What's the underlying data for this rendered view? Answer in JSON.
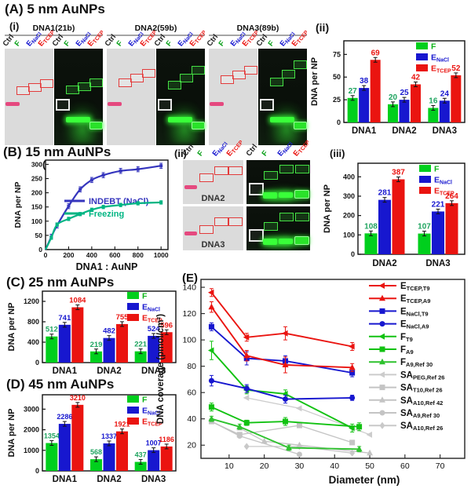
{
  "colors": {
    "green": "#00cf1d",
    "blue": "#1717cf",
    "red": "#ea1410",
    "green_label": "#1ea45f",
    "indebt": "#3535bd",
    "freezing": "#00b583",
    "gray": "#c7c7c7"
  },
  "treatments": [
    {
      "main": "Ctrl",
      "sub": "",
      "color": "#1a1a1a"
    },
    {
      "main": "F",
      "sub": "",
      "color": "#0aa019"
    },
    {
      "main": "E",
      "sub": "NaCl",
      "color": "#1717cf"
    },
    {
      "main": "E",
      "sub": "TCEP",
      "color": "#ea1410"
    }
  ],
  "bar_legend": [
    {
      "main": "F",
      "sub": "",
      "color": "#00cf1d",
      "text_color": "#0bb415"
    },
    {
      "main": "E",
      "sub": "NaCl",
      "color": "#1717cf",
      "text_color": "#1717cf"
    },
    {
      "main": "E",
      "sub": "TCEP",
      "color": "#ea1410",
      "text_color": "#ea1410"
    }
  ],
  "panelA": {
    "title": "(A) 5 nm AuNPs",
    "label_i": "(i)",
    "label_ii": "(ii)",
    "groups": [
      "DNA1(21b)",
      "DNA2(59b)",
      "DNA3(89b)"
    ],
    "gel_groups": [
      {
        "label": "DNA1(21b)",
        "light_y": [
          39,
          36,
          32
        ],
        "dark_y": [
          38,
          35,
          31
        ]
      },
      {
        "label": "DNA2(59b)",
        "light_y": [
          31,
          26,
          21
        ],
        "dark_y": [
          33,
          26,
          18
        ]
      },
      {
        "label": "DNA3(89b)",
        "light_y": [
          28,
          23,
          18
        ],
        "dark_y": [
          30,
          22,
          12
        ]
      }
    ],
    "chart_data": {
      "type": "bar",
      "categories": [
        "DNA1",
        "DNA2",
        "DNA3"
      ],
      "series": [
        {
          "name": "F",
          "values": [
            27,
            20,
            16
          ]
        },
        {
          "name": "ENaCl",
          "values": [
            38,
            25,
            24
          ]
        },
        {
          "name": "ETCEP",
          "values": [
            69,
            42,
            52
          ]
        }
      ],
      "ylabel": "DNA per NP",
      "yticks": [
        0,
        25,
        50,
        75
      ],
      "ylim": [
        0,
        90
      ]
    }
  },
  "panelB": {
    "title": "(B) 15 nm AuNPs",
    "label_i": "(i)",
    "label_ii": "(ii)",
    "label_iii": "(iii)",
    "line_chart": {
      "type": "line",
      "xlabel": "DNA1 : AuNP",
      "ylabel": "DNA per NP",
      "xticks": [
        0,
        200,
        400,
        600,
        800,
        1000
      ],
      "yticks": [
        0,
        50,
        100,
        150,
        200,
        250,
        300
      ],
      "xlim": [
        0,
        1060
      ],
      "ylim": [
        0,
        315
      ],
      "series": [
        {
          "name": "INDEBT (NaCl)",
          "color": "#3535bd",
          "err": 9,
          "x": [
            50,
            100,
            200,
            300,
            400,
            500,
            650,
            800,
            1000
          ],
          "y": [
            45,
            85,
            153,
            212,
            245,
            262,
            277,
            283,
            295
          ]
        },
        {
          "name": "Freezing",
          "color": "#00b583",
          "err": 6,
          "x": [
            50,
            100,
            200,
            300,
            400,
            500,
            650,
            800,
            1000
          ],
          "y": [
            42,
            88,
            108,
            125,
            140,
            150,
            157,
            163,
            166
          ]
        }
      ]
    },
    "gel_rows": [
      {
        "label": "DNA2",
        "light_y": [
          30,
          15,
          15
        ],
        "dark_y": [
          25,
          10,
          10
        ]
      },
      {
        "label": "DNA3",
        "light_y": [
          42,
          25,
          25
        ],
        "dark_y": [
          35,
          15,
          15
        ]
      }
    ],
    "chart_data": {
      "type": "bar",
      "categories": [
        "DNA2",
        "DNA3"
      ],
      "series": [
        {
          "name": "F",
          "values": [
            108,
            107
          ]
        },
        {
          "name": "ENaCl",
          "values": [
            281,
            221
          ]
        },
        {
          "name": "ETCEP",
          "values": [
            387,
            264
          ]
        }
      ],
      "ylabel": "DNA per NP",
      "yticks": [
        0,
        100,
        200,
        300,
        400
      ],
      "ylim": [
        0,
        470
      ]
    }
  },
  "panelC": {
    "title": "(C) 25 nm AuNPs",
    "chart_data": {
      "type": "bar",
      "categories": [
        "DNA1",
        "DNA2",
        "DNA3"
      ],
      "series": [
        {
          "name": "F",
          "values": [
            512,
            219,
            221
          ]
        },
        {
          "name": "ENaCl",
          "values": [
            741,
            482,
            524
          ]
        },
        {
          "name": "ETCEP",
          "values": [
            1084,
            755,
            596
          ]
        }
      ],
      "ylabel": "DNA per NP",
      "yticks": [
        0,
        400,
        800,
        1200
      ],
      "ylim": [
        0,
        1400
      ]
    }
  },
  "panelD": {
    "title": "(D) 45 nm AuNPs",
    "chart_data": {
      "type": "bar",
      "categories": [
        "DNA1",
        "DNA2",
        "DNA3"
      ],
      "series": [
        {
          "name": "F",
          "values": [
            1354,
            568,
            437
          ]
        },
        {
          "name": "ENaCl",
          "values": [
            2286,
            1337,
            1007
          ]
        },
        {
          "name": "ETCEP",
          "values": [
            3210,
            1921,
            1186
          ]
        }
      ],
      "ylabel": "DNA per NP",
      "yticks": [
        0,
        1000,
        2000,
        3000
      ],
      "ylim": [
        0,
        3700
      ]
    }
  },
  "panelE": {
    "label": "(E)",
    "chart_data": {
      "type": "scatter",
      "xlabel": "Diameter (nm)",
      "ylabel": "DNA coverage (pmol/cm²)",
      "xticks": [
        10,
        20,
        30,
        40,
        50,
        60,
        70
      ],
      "yticks": [
        20,
        40,
        60,
        80,
        100,
        120,
        140
      ],
      "xlim": [
        2,
        77
      ],
      "ylim": [
        10,
        146
      ],
      "legend_position": "right-inside",
      "series": [
        {
          "id": "ETCEP-T9",
          "main": "E",
          "sub": "TCEP,T9",
          "color": "#ea1410",
          "marker": "tl",
          "x": [
            5,
            15,
            26,
            45
          ],
          "y": [
            136,
            102,
            105,
            95
          ],
          "err": [
            3,
            3,
            5,
            3
          ]
        },
        {
          "id": "ETCEP-A9",
          "main": "E",
          "sub": "TCEP,A9",
          "color": "#ea1410",
          "marker": "tu",
          "x": [
            5,
            15,
            26,
            45
          ],
          "y": [
            125,
            88,
            81,
            79
          ],
          "err": [
            4,
            4,
            6,
            3
          ]
        },
        {
          "id": "ENaCl-T9",
          "main": "E",
          "sub": "NaCl,T9",
          "color": "#1717cf",
          "marker": "sq",
          "x": [
            5,
            15,
            26,
            45
          ],
          "y": [
            110,
            86,
            84,
            75
          ],
          "err": [
            3,
            5,
            4,
            3
          ]
        },
        {
          "id": "ENaCl-A9",
          "main": "E",
          "sub": "NaCl,A9",
          "color": "#1717cf",
          "marker": "ci",
          "x": [
            5,
            15,
            26,
            45
          ],
          "y": [
            69,
            63,
            55,
            56
          ],
          "err": [
            4,
            3,
            3,
            2
          ]
        },
        {
          "id": "F-T9",
          "main": "F",
          "sub": "T9",
          "color": "#12c212",
          "marker": "tl",
          "x": [
            5,
            15,
            26,
            45
          ],
          "y": [
            92,
            62,
            59,
            33
          ],
          "err": [
            7,
            3,
            3,
            3
          ]
        },
        {
          "id": "F-A9",
          "main": "F",
          "sub": "A9",
          "color": "#12c212",
          "marker": "sq",
          "x": [
            5,
            15,
            26,
            47
          ],
          "y": [
            49,
            37,
            38,
            34
          ],
          "err": [
            3,
            2,
            3,
            3
          ]
        },
        {
          "id": "F-A9-Ref30",
          "main": "F",
          "sub": "A9,Ref 30",
          "color": "#2ec22e",
          "marker": "tu",
          "x": [
            5,
            13,
            27,
            47
          ],
          "y": [
            40,
            34,
            18,
            17
          ],
          "err": [
            2,
            2,
            2,
            2
          ]
        },
        {
          "id": "SA-PEG-Ref26",
          "main": "SA",
          "sub": "PEG,Ref 26",
          "color": "#cccccc",
          "marker": "tl",
          "x": [
            15,
            30,
            50
          ],
          "y": [
            56,
            48,
            28
          ],
          "err": [
            0,
            0,
            0
          ]
        },
        {
          "id": "SA-T10-Ref26",
          "main": "SA",
          "sub": "T10,Ref 26",
          "color": "#c4c4c4",
          "marker": "sq",
          "x": [
            5,
            13,
            30,
            45
          ],
          "y": [
            38,
            28,
            35,
            22
          ],
          "err": [
            0,
            0,
            0,
            0
          ]
        },
        {
          "id": "SA-A10-Ref42",
          "main": "SA",
          "sub": "A10,Ref 42",
          "color": "#c4c4c4",
          "marker": "tu",
          "x": [
            13,
            20,
            30,
            50
          ],
          "y": [
            33,
            23,
            20,
            14
          ],
          "err": [
            0,
            0,
            0,
            0
          ]
        },
        {
          "id": "SA-A9-Ref30",
          "main": "SA",
          "sub": "A9,Ref 30",
          "color": "#c4c4c4",
          "marker": "ci",
          "x": [
            5,
            13,
            30
          ],
          "y": [
            38,
            27,
            13
          ],
          "err": [
            0,
            0,
            0
          ]
        },
        {
          "id": "SA-A10-Ref26",
          "main": "SA",
          "sub": "A10,Ref 26",
          "color": "#c9c9c9",
          "marker": "di",
          "x": [
            15,
            30,
            45
          ],
          "y": [
            19,
            19,
            14
          ],
          "err": [
            0,
            0,
            0
          ]
        }
      ]
    }
  }
}
